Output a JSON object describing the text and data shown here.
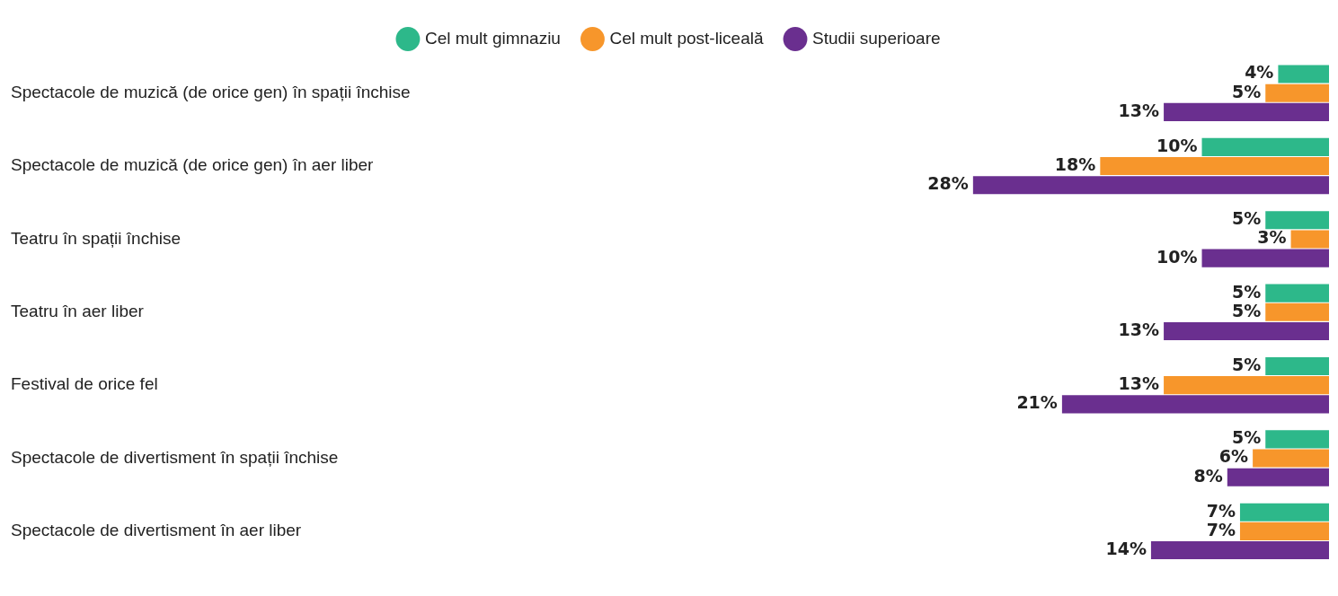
{
  "chart_data": {
    "type": "bar",
    "orientation": "horizontal",
    "legend": "top",
    "tick_labels": "y",
    "categories": [
      "Spectacole de muzică (de orice gen) în spații închise",
      "Spectacole de muzică (de orice gen) în aer liber",
      "Teatru în spații închise",
      "Teatru în aer liber",
      "Festival de orice fel",
      "Spectacole de divertisment în spații închise",
      "Spectacole de divertisment în aer liber"
    ],
    "series": [
      {
        "name": "Cel mult gimnaziu",
        "color": "#2db88a",
        "values": [
          4,
          10,
          5,
          5,
          5,
          5,
          7
        ],
        "value_labels": [
          "4%",
          "10%",
          "5%",
          "5%",
          "5%",
          "5%",
          "7%"
        ]
      },
      {
        "name": "Cel mult post-liceală",
        "color": "#f7962b",
        "values": [
          5,
          18,
          3,
          5,
          13,
          6,
          7
        ],
        "value_labels": [
          "5%",
          "18%",
          "3%",
          "5%",
          "13%",
          "6%",
          "7%"
        ]
      },
      {
        "name": "Studii superioare",
        "color": "#6a2f8f",
        "values": [
          13,
          28,
          10,
          13,
          21,
          8,
          14
        ],
        "value_labels": [
          "13%",
          "28%",
          "10%",
          "13%",
          "21%",
          "8%",
          "14%"
        ]
      }
    ]
  }
}
